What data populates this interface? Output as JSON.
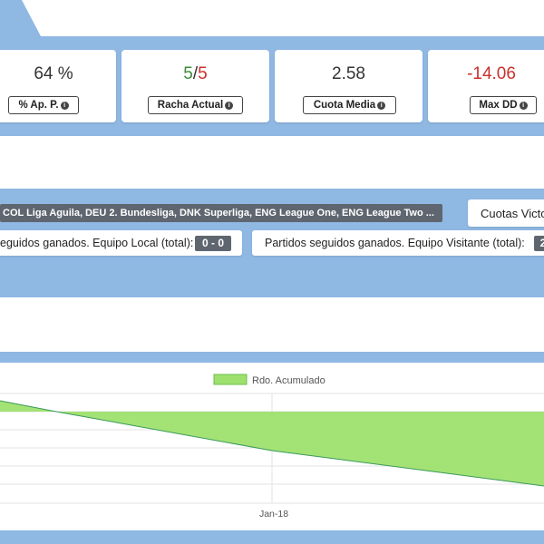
{
  "stats": [
    {
      "value": "64 %",
      "label": "% Ap. P.",
      "color": "#333333"
    },
    {
      "value_a": "5",
      "value_sep": "/",
      "value_b": "5",
      "label": "Racha Actual",
      "color_a": "#3c8c3c",
      "color_b": "#c9302c"
    },
    {
      "value": "2.58",
      "label": "Cuota Media",
      "color": "#333333"
    },
    {
      "value": "-14.06",
      "label": "Max DD",
      "color": "#c9302c"
    }
  ],
  "leagues": {
    "text": "COL Liga Aguila, DEU 2. Bundesliga, DNK Superliga, ENG League One, ENG League Two ..."
  },
  "odds_box": {
    "label": "Cuotas Victo"
  },
  "streak_local": {
    "label": "eguidos ganados. Equipo Local (total):",
    "value": "0 - 0"
  },
  "streak_visitor": {
    "label": "Partidos seguidos ganados. Equipo Visitante (total):",
    "value": "2"
  },
  "chart_data": {
    "type": "area",
    "series": [
      {
        "name": "Rdo. Acumulado"
      }
    ],
    "x_tick_labels": [
      "Jan-18"
    ],
    "grid": true,
    "legend_position": "top",
    "fill_color": "#9ee06e",
    "line_color": "#3a9a5a"
  }
}
